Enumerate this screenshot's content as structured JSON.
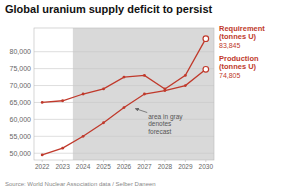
{
  "chart_data": {
    "type": "line",
    "title": "Global uranium supply deficit to persist",
    "source": "Source: World Nuclear Association data / Selber Daneen",
    "x": [
      2022,
      2023,
      2024,
      2025,
      2026,
      2027,
      2028,
      2029,
      2030
    ],
    "xlim": [
      2021.6,
      2030.4
    ],
    "xticks": [
      2022,
      2023,
      2024,
      2025,
      2026,
      2027,
      2028,
      2029,
      2030
    ],
    "ylim": [
      48000,
      87000
    ],
    "yticks": [
      {
        "value": 50000,
        "label": "50,000"
      },
      {
        "value": 55000,
        "label": "55,000"
      },
      {
        "value": 60000,
        "label": "60,000"
      },
      {
        "value": 65000,
        "label": "65,000"
      },
      {
        "value": 70000,
        "label": "70,000"
      },
      {
        "value": 75000,
        "label": "75,000"
      },
      {
        "value": 80000,
        "label": "80,000"
      }
    ],
    "grid": true,
    "marker": "circle",
    "series": [
      {
        "name": "Requirement\n(tonnes U)",
        "color": "#c0392b",
        "values": [
          65000,
          65500,
          67500,
          69000,
          72500,
          73000,
          69000,
          73000,
          83845
        ],
        "value_labels": [
          null,
          null,
          null,
          null,
          null,
          null,
          null,
          null,
          "83,845"
        ]
      },
      {
        "name": "Production\n(tonnes U)",
        "color": "#c0392b",
        "values": [
          49500,
          51500,
          55000,
          59000,
          63500,
          67500,
          68500,
          70000,
          74805
        ],
        "value_labels": [
          null,
          null,
          null,
          null,
          null,
          null,
          null,
          null,
          "74,805"
        ]
      }
    ],
    "forecast": {
      "start": 2024,
      "color": "#d9d9d9"
    },
    "annotations": [
      {
        "text": "area in gray\ndenotes\nforecast",
        "x": 2026.5,
        "y": 63500
      }
    ]
  }
}
